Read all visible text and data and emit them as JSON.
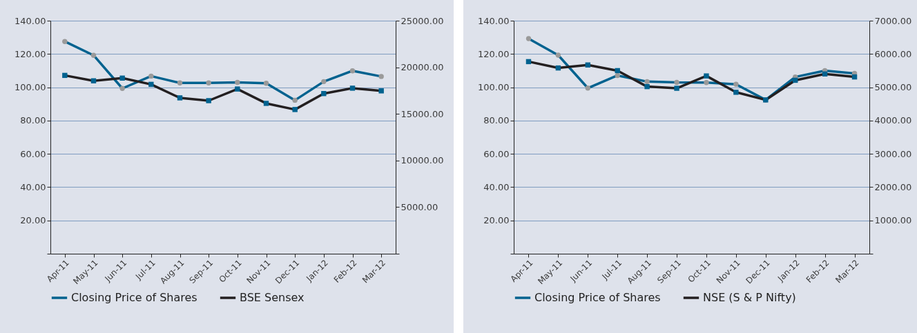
{
  "chart_data": [
    {
      "type": "line",
      "categories": [
        "Apr-11",
        "May-11",
        "Jun-11",
        "Jul-11",
        "Aug-11",
        "Sep-11",
        "Oct-11",
        "Nov-11",
        "Dec-11",
        "Jan-12",
        "Feb-12",
        "Mar-12"
      ],
      "series": [
        {
          "name": "Closing Price of Shares",
          "color": "#00628f",
          "marker": "circle",
          "values": [
            127.5,
            119.2,
            99.3,
            106.7,
            102.6,
            102.6,
            102.9,
            102.4,
            92.2,
            103.4,
            109.9,
            106.5
          ]
        },
        {
          "name": "BSE Sensex",
          "color": "#231f20",
          "marker": "square",
          "axis": "y2",
          "values": [
            19130,
            18550,
            18840,
            18170,
            16720,
            16420,
            17670,
            16130,
            15470,
            17180,
            17760,
            17470
          ]
        }
      ],
      "ylim": [
        0,
        140
      ],
      "yticks": [
        {
          "value": 0,
          "label": null
        },
        {
          "value": 20,
          "label": "20.00"
        },
        {
          "value": 40,
          "label": "40.00"
        },
        {
          "value": 60,
          "label": "60.00"
        },
        {
          "value": 80,
          "label": "80.00"
        },
        {
          "value": 100,
          "label": "100.00"
        },
        {
          "value": 120,
          "label": "120.00"
        },
        {
          "value": 140,
          "label": "140.00"
        }
      ],
      "y2lim": [
        0,
        25000
      ],
      "y2ticks": [
        {
          "value": 0,
          "label": null
        },
        {
          "value": 5000,
          "label": "5000.00"
        },
        {
          "value": 10000,
          "label": "10000.00"
        },
        {
          "value": 15000,
          "label": "15000.00"
        },
        {
          "value": 20000,
          "label": "20000.00"
        },
        {
          "value": 25000,
          "label": "25000.00"
        }
      ],
      "grid": "y",
      "legend": "bottom"
    },
    {
      "type": "line",
      "categories": [
        "Apr-11",
        "May-11",
        "Jun-11",
        "Jul-11",
        "Aug-11",
        "Sep-11",
        "Oct-11",
        "Nov-11",
        "Dec-11",
        "Jan-12",
        "Feb-12",
        "Mar-12"
      ],
      "series": [
        {
          "name": "Closing Price of Shares",
          "color": "#00628f",
          "marker": "circle",
          "values": [
            129.2,
            119.3,
            99.5,
            107.1,
            103.4,
            102.9,
            102.8,
            101.8,
            92.4,
            106.2,
            110.0,
            108.3
          ]
        },
        {
          "name": "NSE (S & P Nifty)",
          "color": "#231f20",
          "marker": "square",
          "axis": "y2",
          "values": [
            5770,
            5580,
            5670,
            5500,
            5020,
            4970,
            5340,
            4850,
            4620,
            5210,
            5400,
            5310
          ]
        }
      ],
      "ylim": [
        0,
        140
      ],
      "yticks": [
        {
          "value": 0,
          "label": null
        },
        {
          "value": 20,
          "label": "20.00"
        },
        {
          "value": 40,
          "label": "40.00"
        },
        {
          "value": 60,
          "label": "60.00"
        },
        {
          "value": 80,
          "label": "80.00"
        },
        {
          "value": 100,
          "label": "100.00"
        },
        {
          "value": 120,
          "label": "120.00"
        },
        {
          "value": 140,
          "label": "140.00"
        }
      ],
      "y2lim": [
        0,
        7000
      ],
      "y2ticks": [
        {
          "value": 0,
          "label": null
        },
        {
          "value": 1000,
          "label": "1000.00"
        },
        {
          "value": 2000,
          "label": "2000.00"
        },
        {
          "value": 3000,
          "label": "3000.00"
        },
        {
          "value": 4000,
          "label": "4000.00"
        },
        {
          "value": 5000,
          "label": "5000.00"
        },
        {
          "value": 6000,
          "label": "6000.00"
        },
        {
          "value": 7000,
          "label": "7000.00"
        }
      ],
      "grid": "y",
      "legend": "bottom"
    }
  ]
}
